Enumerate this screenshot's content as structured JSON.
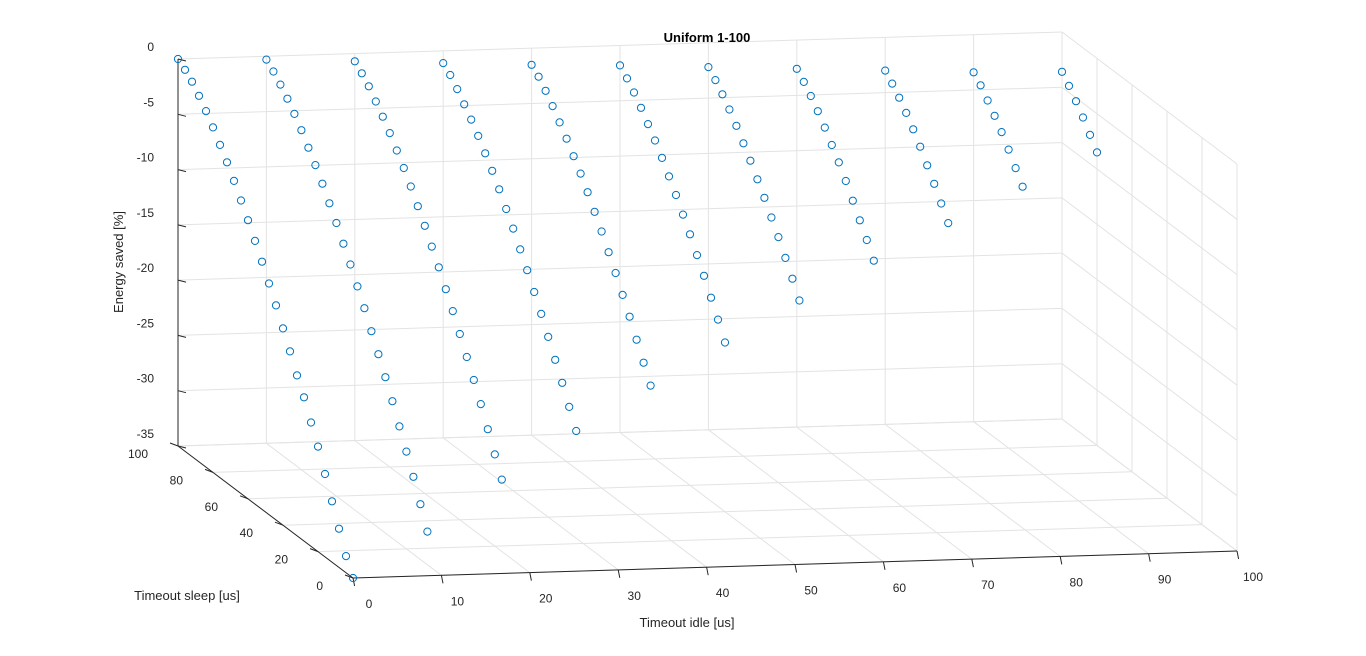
{
  "chart_data": {
    "type": "scatter",
    "title": "Uniform 1-100",
    "xlabel": "Timeout idle [us]",
    "ylabel": "Timeout sleep [us]",
    "zlabel": "Energy saved [%]",
    "x_ticks": [
      0,
      10,
      20,
      30,
      40,
      50,
      60,
      70,
      80,
      90,
      100
    ],
    "y_ticks": [
      0,
      20,
      40,
      60,
      80,
      100
    ],
    "z_ticks": [
      0,
      -5,
      -10,
      -15,
      -20,
      -25,
      -30,
      -35
    ],
    "xlim": [
      0,
      100
    ],
    "ylim": [
      0,
      100
    ],
    "zlim": [
      -35,
      0
    ],
    "grid": true,
    "marker": "circle",
    "marker_color": "#0072bd",
    "points": [
      [
        0,
        0,
        -35
      ],
      [
        0,
        4,
        -33.5
      ],
      [
        0,
        8,
        -31.5
      ],
      [
        0,
        12,
        -29.5
      ],
      [
        0,
        16,
        -27.5
      ],
      [
        0,
        20,
        -25.5
      ],
      [
        0,
        24,
        -23.8
      ],
      [
        0,
        28,
        -22
      ],
      [
        0,
        32,
        -20.5
      ],
      [
        0,
        36,
        -18.8
      ],
      [
        0,
        40,
        -17.2
      ],
      [
        0,
        44,
        -15.6
      ],
      [
        0,
        48,
        -14.1
      ],
      [
        0,
        52,
        -12.6
      ],
      [
        0,
        56,
        -11.2
      ],
      [
        0,
        60,
        -9.8
      ],
      [
        0,
        64,
        -8.5
      ],
      [
        0,
        68,
        -7.2
      ],
      [
        0,
        72,
        -6
      ],
      [
        0,
        76,
        -4.9
      ],
      [
        0,
        80,
        -3.8
      ],
      [
        0,
        84,
        -2.8
      ],
      [
        0,
        88,
        -1.9
      ],
      [
        0,
        92,
        -1.1
      ],
      [
        0,
        96,
        -0.5
      ],
      [
        0,
        100,
        0
      ],
      [
        10,
        8,
        -32
      ],
      [
        10,
        12,
        -30
      ],
      [
        10,
        16,
        -28
      ],
      [
        10,
        20,
        -26.2
      ],
      [
        10,
        24,
        -24.4
      ],
      [
        10,
        28,
        -22.6
      ],
      [
        10,
        32,
        -20.9
      ],
      [
        10,
        36,
        -19.3
      ],
      [
        10,
        40,
        -17.7
      ],
      [
        10,
        44,
        -16.1
      ],
      [
        10,
        48,
        -14.6
      ],
      [
        10,
        52,
        -13.1
      ],
      [
        10,
        56,
        -11.7
      ],
      [
        10,
        60,
        -10.3
      ],
      [
        10,
        64,
        -9
      ],
      [
        10,
        68,
        -7.7
      ],
      [
        10,
        72,
        -6.5
      ],
      [
        10,
        76,
        -5.4
      ],
      [
        10,
        80,
        -4.3
      ],
      [
        10,
        84,
        -3.3
      ],
      [
        10,
        88,
        -2.4
      ],
      [
        10,
        92,
        -1.6
      ],
      [
        10,
        96,
        -0.9
      ],
      [
        10,
        100,
        -0.3
      ],
      [
        20,
        16,
        -28.5
      ],
      [
        20,
        20,
        -26.7
      ],
      [
        20,
        24,
        -24.9
      ],
      [
        20,
        28,
        -23.1
      ],
      [
        20,
        32,
        -21.4
      ],
      [
        20,
        36,
        -19.8
      ],
      [
        20,
        40,
        -18.2
      ],
      [
        20,
        44,
        -16.6
      ],
      [
        20,
        48,
        -15.1
      ],
      [
        20,
        52,
        -13.6
      ],
      [
        20,
        56,
        -12.2
      ],
      [
        20,
        60,
        -10.8
      ],
      [
        20,
        64,
        -9.5
      ],
      [
        20,
        68,
        -8.2
      ],
      [
        20,
        72,
        -7
      ],
      [
        20,
        76,
        -5.9
      ],
      [
        20,
        80,
        -4.8
      ],
      [
        20,
        84,
        -3.8
      ],
      [
        20,
        88,
        -2.9
      ],
      [
        20,
        92,
        -2
      ],
      [
        20,
        96,
        -1.3
      ],
      [
        20,
        100,
        -0.7
      ],
      [
        30,
        24,
        -25.3
      ],
      [
        30,
        28,
        -23.6
      ],
      [
        30,
        32,
        -21.9
      ],
      [
        30,
        36,
        -20.3
      ],
      [
        30,
        40,
        -18.7
      ],
      [
        30,
        44,
        -17.1
      ],
      [
        30,
        48,
        -15.6
      ],
      [
        30,
        52,
        -14.1
      ],
      [
        30,
        56,
        -12.7
      ],
      [
        30,
        60,
        -11.3
      ],
      [
        30,
        64,
        -10
      ],
      [
        30,
        68,
        -8.7
      ],
      [
        30,
        72,
        -7.5
      ],
      [
        30,
        76,
        -6.4
      ],
      [
        30,
        80,
        -5.3
      ],
      [
        30,
        84,
        -4.3
      ],
      [
        30,
        88,
        -3.4
      ],
      [
        30,
        92,
        -2.5
      ],
      [
        30,
        96,
        -1.7
      ],
      [
        30,
        100,
        -1.1
      ],
      [
        40,
        32,
        -22.4
      ],
      [
        40,
        36,
        -20.8
      ],
      [
        40,
        40,
        -19.2
      ],
      [
        40,
        44,
        -17.6
      ],
      [
        40,
        48,
        -16.1
      ],
      [
        40,
        52,
        -14.6
      ],
      [
        40,
        56,
        -13.2
      ],
      [
        40,
        60,
        -11.8
      ],
      [
        40,
        64,
        -10.5
      ],
      [
        40,
        68,
        -9.2
      ],
      [
        40,
        72,
        -8
      ],
      [
        40,
        76,
        -6.9
      ],
      [
        40,
        80,
        -5.8
      ],
      [
        40,
        84,
        -4.8
      ],
      [
        40,
        88,
        -3.8
      ],
      [
        40,
        92,
        -2.9
      ],
      [
        40,
        96,
        -2.1
      ],
      [
        40,
        100,
        -1.5
      ],
      [
        50,
        40,
        -19.7
      ],
      [
        50,
        44,
        -18.1
      ],
      [
        50,
        48,
        -16.6
      ],
      [
        50,
        52,
        -15.1
      ],
      [
        50,
        56,
        -13.7
      ],
      [
        50,
        60,
        -12.3
      ],
      [
        50,
        64,
        -11
      ],
      [
        50,
        68,
        -9.7
      ],
      [
        50,
        72,
        -8.5
      ],
      [
        50,
        76,
        -7.3
      ],
      [
        50,
        80,
        -6.2
      ],
      [
        50,
        84,
        -5.2
      ],
      [
        50,
        88,
        -4.2
      ],
      [
        50,
        92,
        -3.3
      ],
      [
        50,
        96,
        -2.5
      ],
      [
        50,
        100,
        -1.8
      ],
      [
        60,
        48,
        -17.1
      ],
      [
        60,
        52,
        -15.6
      ],
      [
        60,
        56,
        -14.2
      ],
      [
        60,
        60,
        -12.8
      ],
      [
        60,
        64,
        -11.5
      ],
      [
        60,
        68,
        -10.2
      ],
      [
        60,
        72,
        -9
      ],
      [
        60,
        76,
        -7.8
      ],
      [
        60,
        80,
        -6.7
      ],
      [
        60,
        84,
        -5.6
      ],
      [
        60,
        88,
        -4.6
      ],
      [
        60,
        92,
        -3.7
      ],
      [
        60,
        96,
        -2.9
      ],
      [
        60,
        100,
        -2.2
      ],
      [
        70,
        56,
        -14.7
      ],
      [
        70,
        60,
        -13.3
      ],
      [
        70,
        64,
        -12
      ],
      [
        70,
        68,
        -10.7
      ],
      [
        70,
        72,
        -9.4
      ],
      [
        70,
        76,
        -8.2
      ],
      [
        70,
        80,
        -7.1
      ],
      [
        70,
        84,
        -6
      ],
      [
        70,
        88,
        -5
      ],
      [
        70,
        92,
        -4.1
      ],
      [
        70,
        96,
        -3.3
      ],
      [
        70,
        100,
        -2.6
      ],
      [
        80,
        64,
        -12.5
      ],
      [
        80,
        68,
        -11.2
      ],
      [
        80,
        72,
        -9.9
      ],
      [
        80,
        76,
        -8.7
      ],
      [
        80,
        80,
        -7.5
      ],
      [
        80,
        84,
        -6.4
      ],
      [
        80,
        88,
        -5.4
      ],
      [
        80,
        92,
        -4.5
      ],
      [
        80,
        96,
        -3.7
      ],
      [
        80,
        100,
        -3
      ],
      [
        90,
        72,
        -10.4
      ],
      [
        90,
        76,
        -9.2
      ],
      [
        90,
        80,
        -8
      ],
      [
        90,
        84,
        -6.9
      ],
      [
        90,
        88,
        -5.9
      ],
      [
        90,
        92,
        -5
      ],
      [
        90,
        96,
        -4.1
      ],
      [
        90,
        100,
        -3.4
      ],
      [
        100,
        80,
        -8.5
      ],
      [
        100,
        84,
        -7.4
      ],
      [
        100,
        88,
        -6.3
      ],
      [
        100,
        92,
        -5.3
      ],
      [
        100,
        96,
        -4.4
      ],
      [
        100,
        100,
        -3.6
      ]
    ]
  }
}
